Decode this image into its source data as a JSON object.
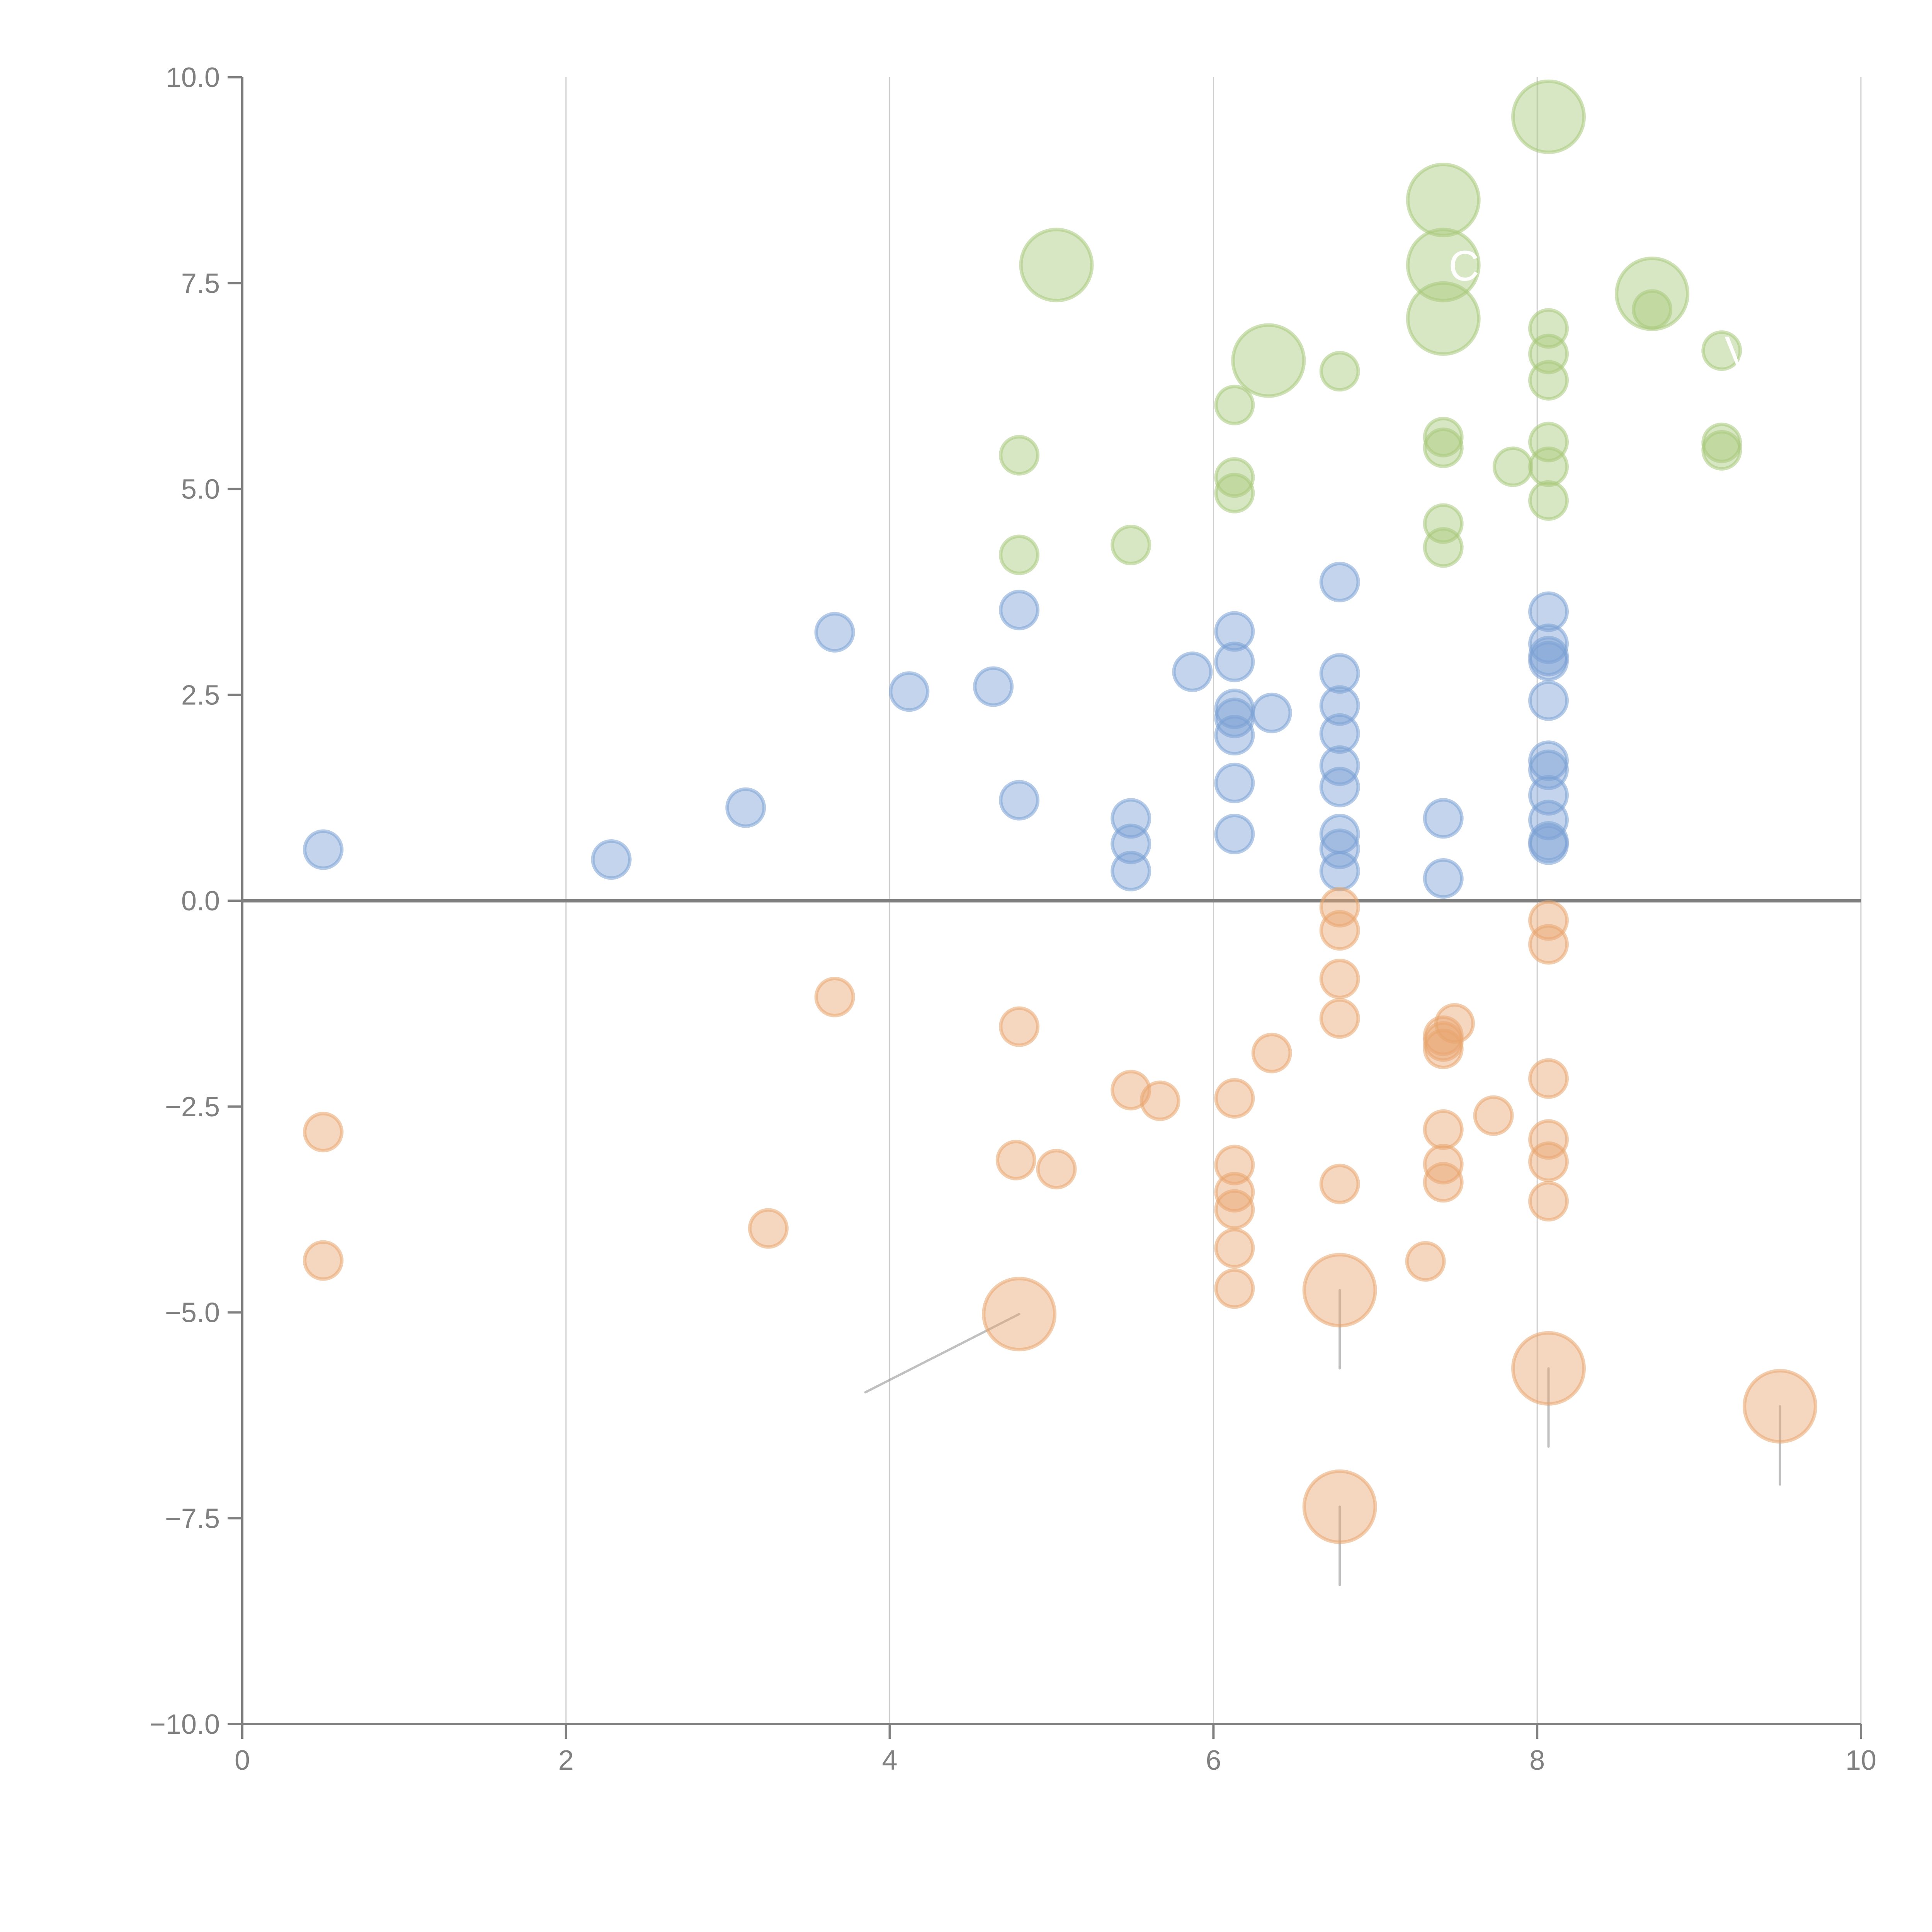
{
  "chart_data": {
    "type": "scatter",
    "subtype": "bubble",
    "title": "",
    "xlabel": "",
    "ylabel": "",
    "xlim": [
      0,
      10
    ],
    "ylim": [
      -10,
      10
    ],
    "x_ticks": [
      0,
      2,
      4,
      6,
      8,
      10
    ],
    "x_tick_labels": [
      "0",
      "2",
      "4",
      "6",
      "8",
      "10"
    ],
    "y_ticks": [
      10,
      7.5,
      5,
      2.5,
      0,
      -2.5,
      -5,
      -7.5,
      -10
    ],
    "y_tick_labels": [
      "10.0",
      "7.5",
      "5.0",
      "2.5",
      "0.0",
      "−2.5",
      "−5.0",
      "−7.5",
      "−10.0"
    ],
    "grid": {
      "vertical": true,
      "horizontal": false
    },
    "zero_line": true,
    "legend": "none",
    "series": [
      {
        "name": "blue",
        "color": "#7aa0d4",
        "points": [
          {
            "x": 0.5,
            "y": 0.62,
            "size": 1
          },
          {
            "x": 2.28,
            "y": 0.5,
            "size": 1
          },
          {
            "x": 3.11,
            "y": 1.13,
            "size": 1
          },
          {
            "x": 3.66,
            "y": 3.26,
            "size": 1
          },
          {
            "x": 4.12,
            "y": 2.54,
            "size": 1
          },
          {
            "x": 4.64,
            "y": 2.6,
            "size": 1
          },
          {
            "x": 4.8,
            "y": 3.53,
            "size": 1
          },
          {
            "x": 4.8,
            "y": 1.22,
            "size": 1
          },
          {
            "x": 5.49,
            "y": 1.0,
            "size": 1
          },
          {
            "x": 5.49,
            "y": 0.69,
            "size": 1
          },
          {
            "x": 5.49,
            "y": 0.36,
            "size": 1
          },
          {
            "x": 5.87,
            "y": 2.78,
            "size": 1
          },
          {
            "x": 6.13,
            "y": 3.27,
            "size": 1
          },
          {
            "x": 6.13,
            "y": 2.9,
            "size": 1
          },
          {
            "x": 6.13,
            "y": 2.33,
            "size": 1
          },
          {
            "x": 6.13,
            "y": 2.22,
            "size": 1
          },
          {
            "x": 6.13,
            "y": 2.01,
            "size": 1
          },
          {
            "x": 6.13,
            "y": 1.43,
            "size": 1
          },
          {
            "x": 6.13,
            "y": 0.81,
            "size": 1
          },
          {
            "x": 6.36,
            "y": 2.28,
            "size": 1
          },
          {
            "x": 6.78,
            "y": 3.87,
            "size": 1
          },
          {
            "x": 6.78,
            "y": 2.76,
            "size": 1
          },
          {
            "x": 6.78,
            "y": 2.37,
            "size": 1
          },
          {
            "x": 6.78,
            "y": 2.03,
            "size": 1
          },
          {
            "x": 6.78,
            "y": 1.64,
            "size": 1
          },
          {
            "x": 6.78,
            "y": 1.38,
            "size": 1
          },
          {
            "x": 6.78,
            "y": 0.81,
            "size": 1
          },
          {
            "x": 6.78,
            "y": 0.63,
            "size": 1
          },
          {
            "x": 6.78,
            "y": 0.36,
            "size": 1
          },
          {
            "x": 7.42,
            "y": 1.0,
            "size": 1
          },
          {
            "x": 7.42,
            "y": 0.27,
            "size": 1
          },
          {
            "x": 8.07,
            "y": 3.51,
            "size": 1
          },
          {
            "x": 8.07,
            "y": 3.12,
            "size": 1
          },
          {
            "x": 8.07,
            "y": 2.97,
            "size": 1
          },
          {
            "x": 8.07,
            "y": 2.91,
            "size": 1
          },
          {
            "x": 8.07,
            "y": 2.43,
            "size": 1
          },
          {
            "x": 8.07,
            "y": 1.7,
            "size": 1
          },
          {
            "x": 8.07,
            "y": 1.59,
            "size": 1
          },
          {
            "x": 8.07,
            "y": 1.28,
            "size": 1
          },
          {
            "x": 8.07,
            "y": 0.98,
            "size": 1
          },
          {
            "x": 8.07,
            "y": 0.72,
            "size": 1
          },
          {
            "x": 8.07,
            "y": 0.68,
            "size": 1
          }
        ]
      },
      {
        "name": "green",
        "color": "#a8c97a",
        "leader_color": "#ffffff",
        "points": [
          {
            "x": 4.8,
            "y": 5.41,
            "size": 1
          },
          {
            "x": 4.8,
            "y": 4.2,
            "size": 1
          },
          {
            "x": 5.03,
            "y": 7.72,
            "size": 2
          },
          {
            "x": 5.49,
            "y": 4.32,
            "size": 1
          },
          {
            "x": 6.13,
            "y": 6.02,
            "size": 1
          },
          {
            "x": 6.13,
            "y": 5.14,
            "size": 1
          },
          {
            "x": 6.13,
            "y": 4.95,
            "size": 1
          },
          {
            "x": 6.34,
            "y": 6.56,
            "size": 2,
            "leader": [
              -0.3,
              -0.2
            ]
          },
          {
            "x": 6.78,
            "y": 6.43,
            "size": 1
          },
          {
            "x": 7.42,
            "y": 8.51,
            "size": 2,
            "leader": [
              0,
              0.45
            ]
          },
          {
            "x": 7.42,
            "y": 7.72,
            "size": 2,
            "leader": [
              0.3,
              0.12
            ],
            "label": "C"
          },
          {
            "x": 7.42,
            "y": 7.07,
            "size": 2,
            "leader": [
              0.25,
              -0.3
            ]
          },
          {
            "x": 7.42,
            "y": 5.63,
            "size": 1
          },
          {
            "x": 7.42,
            "y": 5.5,
            "size": 1
          },
          {
            "x": 7.42,
            "y": 4.58,
            "size": 1
          },
          {
            "x": 7.42,
            "y": 4.29,
            "size": 1
          },
          {
            "x": 7.85,
            "y": 5.27,
            "size": 1
          },
          {
            "x": 8.07,
            "y": 9.52,
            "size": 2,
            "leader": [
              0.35,
              0.05
            ]
          },
          {
            "x": 8.07,
            "y": 6.95,
            "size": 1
          },
          {
            "x": 8.07,
            "y": 6.64,
            "size": 1
          },
          {
            "x": 8.07,
            "y": 6.32,
            "size": 1
          },
          {
            "x": 8.07,
            "y": 5.57,
            "size": 1
          },
          {
            "x": 8.07,
            "y": 5.27,
            "size": 1
          },
          {
            "x": 8.07,
            "y": 4.86,
            "size": 1
          },
          {
            "x": 8.71,
            "y": 7.37,
            "size": 2
          },
          {
            "x": 8.71,
            "y": 7.18,
            "size": 1
          },
          {
            "x": 9.14,
            "y": 6.68,
            "size": 1,
            "label": "Vi"
          },
          {
            "x": 9.14,
            "y": 5.56,
            "size": 1
          },
          {
            "x": 9.14,
            "y": 5.47,
            "size": 1
          }
        ]
      },
      {
        "name": "orange",
        "color": "#e8a56e",
        "leader_color": "#b8b8b8",
        "points": [
          {
            "x": 0.5,
            "y": -2.81,
            "size": 1
          },
          {
            "x": 0.5,
            "y": -4.37,
            "size": 1
          },
          {
            "x": 3.25,
            "y": -3.98,
            "size": 1
          },
          {
            "x": 3.66,
            "y": -1.17,
            "size": 1
          },
          {
            "x": 4.8,
            "y": -1.53,
            "size": 1
          },
          {
            "x": 4.78,
            "y": -3.15,
            "size": 1
          },
          {
            "x": 4.8,
            "y": -5.02,
            "size": 2,
            "leader": [
              -0.95,
              -0.95
            ]
          },
          {
            "x": 5.03,
            "y": -3.26,
            "size": 1
          },
          {
            "x": 5.49,
            "y": -2.3,
            "size": 1
          },
          {
            "x": 5.67,
            "y": -2.43,
            "size": 1
          },
          {
            "x": 6.13,
            "y": -2.4,
            "size": 1
          },
          {
            "x": 6.13,
            "y": -3.21,
            "size": 1
          },
          {
            "x": 6.13,
            "y": -3.54,
            "size": 1
          },
          {
            "x": 6.13,
            "y": -3.75,
            "size": 1
          },
          {
            "x": 6.13,
            "y": -4.22,
            "size": 1
          },
          {
            "x": 6.13,
            "y": -4.71,
            "size": 1
          },
          {
            "x": 6.36,
            "y": -1.85,
            "size": 1
          },
          {
            "x": 6.78,
            "y": -0.08,
            "size": 1
          },
          {
            "x": 6.78,
            "y": -0.36,
            "size": 1
          },
          {
            "x": 6.78,
            "y": -0.95,
            "size": 1
          },
          {
            "x": 6.78,
            "y": -1.43,
            "size": 1
          },
          {
            "x": 6.78,
            "y": -3.44,
            "size": 1
          },
          {
            "x": 6.78,
            "y": -4.73,
            "size": 2,
            "leader": [
              0,
              -0.95
            ]
          },
          {
            "x": 6.78,
            "y": -7.36,
            "size": 2,
            "leader": [
              0,
              -0.95
            ]
          },
          {
            "x": 7.31,
            "y": -4.38,
            "size": 1
          },
          {
            "x": 7.42,
            "y": -1.64,
            "size": 1
          },
          {
            "x": 7.42,
            "y": -1.71,
            "size": 1
          },
          {
            "x": 7.42,
            "y": -1.8,
            "size": 1
          },
          {
            "x": 7.42,
            "y": -2.78,
            "size": 1
          },
          {
            "x": 7.42,
            "y": -3.2,
            "size": 1
          },
          {
            "x": 7.42,
            "y": -3.42,
            "size": 1
          },
          {
            "x": 7.49,
            "y": -1.49,
            "size": 1
          },
          {
            "x": 7.73,
            "y": -2.61,
            "size": 1
          },
          {
            "x": 8.07,
            "y": -0.24,
            "size": 1
          },
          {
            "x": 8.07,
            "y": -0.53,
            "size": 1
          },
          {
            "x": 8.07,
            "y": -2.16,
            "size": 1
          },
          {
            "x": 8.07,
            "y": -2.9,
            "size": 1
          },
          {
            "x": 8.07,
            "y": -3.17,
            "size": 1
          },
          {
            "x": 8.07,
            "y": -3.65,
            "size": 1
          },
          {
            "x": 8.07,
            "y": -5.68,
            "size": 2,
            "leader": [
              0,
              -0.95
            ]
          },
          {
            "x": 9.5,
            "y": -6.14,
            "size": 2,
            "leader": [
              0,
              -0.95
            ]
          }
        ]
      }
    ]
  }
}
